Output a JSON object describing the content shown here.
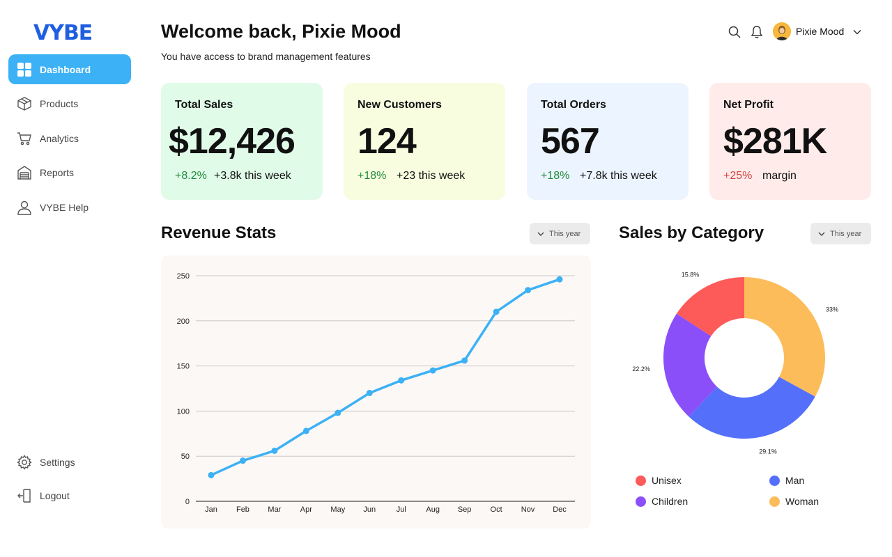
{
  "app": {
    "logo": "VYBE"
  },
  "sidebar": {
    "items": [
      {
        "label": "Dashboard",
        "icon": "grid-icon",
        "active": true
      },
      {
        "label": "Products",
        "icon": "box-icon"
      },
      {
        "label": "Analytics",
        "icon": "cart-icon"
      },
      {
        "label": "Reports",
        "icon": "building-icon"
      },
      {
        "label": "VYBE Help",
        "icon": "user-icon"
      }
    ],
    "bottom_items": [
      {
        "label": "Settings",
        "icon": "gear-icon"
      },
      {
        "label": "Logout",
        "icon": "logout-icon"
      }
    ]
  },
  "header": {
    "title": "Welcome back, Pixie Mood",
    "subtitle": "You have access to brand management features",
    "user_name": "Pixie Mood"
  },
  "cards": [
    {
      "title": "Total Sales",
      "value": "$12,426",
      "change": "+8.2%",
      "note": "+3.8k this week",
      "bg": "#e1fbe9",
      "change_color": "green"
    },
    {
      "title": "New Customers",
      "value": "124",
      "change": "+18%",
      "note": "+23 this week",
      "bg": "#f8fde0",
      "change_color": "green"
    },
    {
      "title": "Total Orders",
      "value": "567",
      "change": "+18%",
      "note": "+7.8k this week",
      "bg": "#ecf5ff",
      "change_color": "green"
    },
    {
      "title": "Net Profit",
      "value": "$281K",
      "change": "+25%",
      "note": "margin",
      "bg": "#ffecea",
      "change_color": "red"
    }
  ],
  "revenue": {
    "title": "Revenue Stats",
    "filter": "This year"
  },
  "category": {
    "title": "Sales by Category",
    "filter": "This year"
  },
  "chart_data": [
    {
      "type": "line",
      "categories": [
        "Jan",
        "Feb",
        "Mar",
        "Apr",
        "May",
        "Jun",
        "Jul",
        "Aug",
        "Sep",
        "Oct",
        "Nov",
        "Dec"
      ],
      "values": [
        29,
        45,
        56,
        78,
        98,
        120,
        134,
        145,
        156,
        210,
        234,
        246
      ],
      "yticks": [
        0,
        50,
        100,
        150,
        200,
        250
      ],
      "ylim": [
        0,
        250
      ],
      "grid": true,
      "color": "#3cb1f5"
    },
    {
      "type": "pie",
      "donut": true,
      "slices": [
        {
          "name": "Woman",
          "value": 33,
          "label": "33%",
          "color": "#fdbc5a"
        },
        {
          "name": "Man",
          "value": 29.1,
          "label": "29.1%",
          "color": "#5470fb"
        },
        {
          "name": "Children",
          "value": 22.2,
          "label": "22.2%",
          "color": "#8b4ffa"
        },
        {
          "name": "Unisex",
          "value": 15.8,
          "label": "15.8%",
          "color": "#fd5a5a"
        }
      ],
      "legend": [
        {
          "name": "Unisex",
          "color": "#fd5a5a"
        },
        {
          "name": "Man",
          "color": "#5470fb"
        },
        {
          "name": "Children",
          "color": "#8b4ffa"
        },
        {
          "name": "Woman",
          "color": "#fdbc5a"
        }
      ]
    }
  ]
}
